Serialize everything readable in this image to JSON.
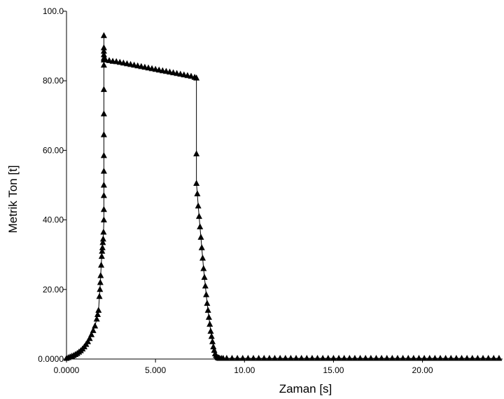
{
  "chart_data": {
    "type": "line",
    "title": "",
    "xlabel": "Zaman [s]",
    "ylabel": "Metrik Ton [t]",
    "xlim": [
      0,
      24.5
    ],
    "ylim": [
      0,
      100
    ],
    "grid": false,
    "x_ticks": [
      {
        "value": 0,
        "label": "0.0000"
      },
      {
        "value": 5,
        "label": "5.000"
      },
      {
        "value": 10,
        "label": "10.00"
      },
      {
        "value": 15,
        "label": "15.00"
      },
      {
        "value": 20,
        "label": "20.00"
      }
    ],
    "y_ticks": [
      {
        "value": 0,
        "label": "0.0000"
      },
      {
        "value": 20,
        "label": "20.00"
      },
      {
        "value": 40,
        "label": "40.00"
      },
      {
        "value": 60,
        "label": "60.00"
      },
      {
        "value": 80,
        "label": "80.00"
      },
      {
        "value": 100,
        "label": "100.0"
      }
    ],
    "marker": "triangle",
    "color": "#000000",
    "series": [
      {
        "x": [
          0.0,
          0.1,
          0.2,
          0.3,
          0.4,
          0.5,
          0.6,
          0.7,
          0.8,
          0.9,
          1.0,
          1.1,
          1.2,
          1.3,
          1.4,
          1.5,
          1.6,
          1.7,
          1.75,
          1.8,
          1.85,
          1.88,
          1.9,
          1.92,
          1.95,
          1.98,
          2.0,
          2.02,
          2.04,
          2.06,
          2.08,
          2.1,
          2.1,
          2.1,
          2.1,
          2.1,
          2.1,
          2.1,
          2.1,
          2.1,
          2.1,
          2.1,
          2.1,
          2.1,
          2.1,
          2.1,
          2.1,
          2.2,
          2.4,
          2.6,
          2.8,
          3.0,
          3.2,
          3.4,
          3.6,
          3.8,
          4.0,
          4.2,
          4.4,
          4.6,
          4.8,
          5.0,
          5.2,
          5.4,
          5.6,
          5.8,
          6.0,
          6.2,
          6.4,
          6.6,
          6.8,
          7.0,
          7.2,
          7.3,
          7.3,
          7.3,
          7.35,
          7.4,
          7.45,
          7.5,
          7.55,
          7.6,
          7.65,
          7.7,
          7.75,
          7.8,
          7.85,
          7.9,
          7.95,
          8.0,
          8.05,
          8.1,
          8.15,
          8.2,
          8.25,
          8.3,
          8.35,
          8.4,
          8.45,
          8.5,
          8.55,
          8.6,
          8.7,
          8.8,
          9.0,
          9.3,
          9.6,
          9.9,
          10.2,
          10.5,
          10.8,
          11.1,
          11.4,
          11.7,
          12.0,
          12.3,
          12.6,
          12.9,
          13.2,
          13.5,
          13.8,
          14.1,
          14.4,
          14.7,
          15.0,
          15.3,
          15.6,
          15.9,
          16.2,
          16.5,
          16.8,
          17.1,
          17.4,
          17.7,
          18.0,
          18.3,
          18.6,
          18.9,
          19.2,
          19.5,
          19.8,
          20.1,
          20.4,
          20.7,
          21.0,
          21.3,
          21.6,
          21.9,
          22.2,
          22.5,
          22.8,
          23.1,
          23.4,
          23.7,
          24.0,
          24.3
        ],
        "y": [
          0.2,
          0.4,
          0.6,
          0.8,
          1.0,
          1.3,
          1.6,
          2.0,
          2.4,
          2.9,
          3.5,
          4.2,
          5.0,
          5.9,
          7.0,
          8.2,
          9.5,
          11.5,
          12.8,
          14.0,
          18.0,
          20.0,
          22.0,
          24.0,
          27.0,
          29.5,
          31.0,
          32.0,
          33.5,
          34.5,
          36.5,
          40.0,
          43.0,
          47.0,
          50.0,
          54.0,
          58.5,
          64.5,
          70.5,
          77.5,
          84.5,
          86.5,
          87.5,
          88.5,
          89.5,
          93.0,
          86.0,
          86.0,
          85.8,
          85.6,
          85.5,
          85.3,
          85.1,
          84.9,
          84.7,
          84.5,
          84.3,
          84.1,
          83.9,
          83.7,
          83.5,
          83.3,
          83.1,
          82.9,
          82.7,
          82.5,
          82.3,
          82.1,
          81.9,
          81.7,
          81.5,
          81.3,
          81.0,
          80.8,
          59.0,
          50.5,
          47.5,
          44.0,
          41.0,
          38.0,
          35.0,
          32.0,
          29.0,
          26.0,
          23.5,
          21.0,
          18.5,
          16.0,
          14.0,
          12.0,
          10.0,
          8.0,
          6.5,
          5.0,
          3.5,
          2.5,
          1.5,
          1.0,
          0.6,
          0.4,
          0.3,
          0.2,
          0.2,
          0.2,
          0.2,
          0.2,
          0.2,
          0.2,
          0.2,
          0.2,
          0.2,
          0.2,
          0.2,
          0.2,
          0.2,
          0.2,
          0.2,
          0.2,
          0.2,
          0.2,
          0.2,
          0.2,
          0.2,
          0.2,
          0.2,
          0.2,
          0.2,
          0.2,
          0.2,
          0.2,
          0.2,
          0.2,
          0.2,
          0.2,
          0.2,
          0.2,
          0.2,
          0.2,
          0.2,
          0.2,
          0.2,
          0.2,
          0.2,
          0.2,
          0.2,
          0.2,
          0.2,
          0.2,
          0.2,
          0.2,
          0.2,
          0.2,
          0.2,
          0.2,
          0.2,
          0.2
        ]
      }
    ]
  }
}
